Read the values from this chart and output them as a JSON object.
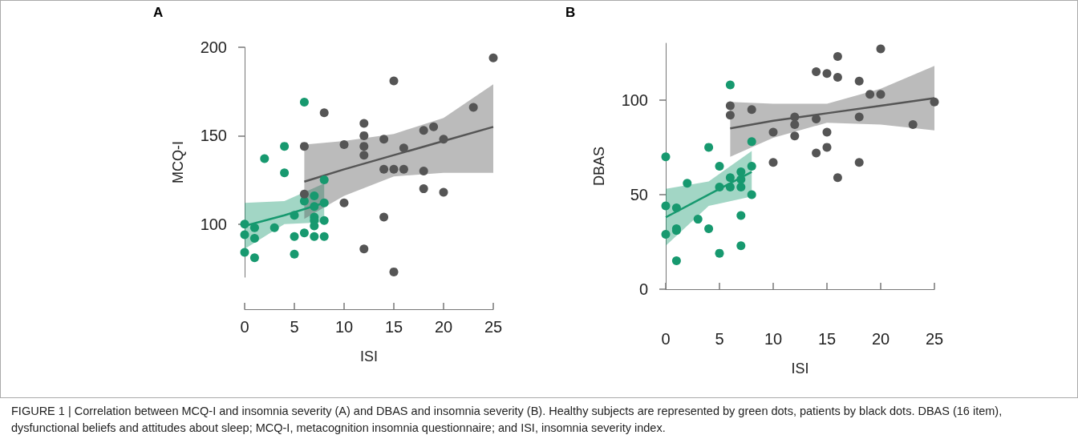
{
  "chart_data": [
    {
      "type": "scatter",
      "title": "A",
      "xlabel": "ISI",
      "ylabel": "MCQ-I",
      "xlim": [
        0,
        25
      ],
      "xticks": [
        0,
        5,
        10,
        15,
        20,
        25
      ],
      "ylim": [
        70,
        200
      ],
      "yticks": [
        100,
        150,
        200
      ],
      "grid": false,
      "annotations": [
        "FIGURE 1 | Correlation between MCQ-I and insomnia severity (A) and DBAS and insomnia severity (B). Healthy subjects are represented by green dots, patients by black dots. DBAS (16 item), dysfunctional beliefs and attitudes about sleep; MCQ-I, metacognition insomnia questionnaire; and ISI, insomnia severity index."
      ],
      "series": [
        {
          "marker": "circle",
          "color": "#17996f",
          "x": [
            0,
            0,
            0,
            1,
            1,
            1,
            2,
            3,
            4,
            4,
            5,
            5,
            5,
            6,
            6,
            6,
            7,
            7,
            7,
            7,
            7,
            7,
            8,
            8,
            8,
            8
          ],
          "values": [
            100,
            94,
            84,
            98,
            92,
            81,
            137,
            98,
            144,
            129,
            105,
            93,
            83,
            169,
            113,
            95,
            116,
            110,
            104,
            102,
            99,
            93,
            125,
            112,
            102,
            93
          ]
        },
        {
          "marker": "circle",
          "color": "#555555",
          "x": [
            6,
            6,
            8,
            10,
            10,
            12,
            12,
            12,
            12,
            12,
            14,
            14,
            14,
            15,
            15,
            15,
            16,
            16,
            18,
            18,
            18,
            19,
            20,
            20,
            23,
            25
          ],
          "values": [
            144,
            117,
            163,
            145,
            112,
            157,
            150,
            144,
            139,
            86,
            148,
            131,
            104,
            181,
            131,
            73,
            143,
            131,
            153,
            130,
            120,
            155,
            148,
            118,
            166,
            194
          ]
        },
        {
          "type": "line",
          "marker": "none",
          "color": "#17996f",
          "x": [
            0,
            4,
            8
          ],
          "values": [
            99,
            105,
            112
          ],
          "lower": [
            86,
            100,
            101
          ],
          "upper": [
            112,
            113,
            123
          ]
        },
        {
          "type": "line",
          "marker": "none",
          "color": "#555555",
          "x": [
            6,
            10,
            15,
            20,
            25
          ],
          "values": [
            124,
            131,
            139,
            147,
            155
          ],
          "lower": [
            103,
            116,
            127,
            129,
            129
          ],
          "upper": [
            145,
            147,
            151,
            160,
            179
          ]
        }
      ]
    },
    {
      "type": "scatter",
      "title": "B",
      "xlabel": "ISI",
      "ylabel": "DBAS",
      "xlim": [
        0,
        25
      ],
      "xticks": [
        0,
        5,
        10,
        15,
        20,
        25
      ],
      "ylim": [
        0,
        130
      ],
      "yticks": [
        0,
        50,
        100
      ],
      "grid": false,
      "series": [
        {
          "marker": "circle",
          "color": "#17996f",
          "x": [
            0,
            0,
            0,
            1,
            1,
            1,
            1,
            2,
            3,
            4,
            4,
            5,
            5,
            5,
            6,
            6,
            6,
            7,
            7,
            7,
            7,
            7,
            8,
            8,
            8
          ],
          "values": [
            70,
            44,
            29,
            43,
            32,
            31,
            15,
            56,
            37,
            75,
            32,
            65,
            54,
            19,
            108,
            59,
            54,
            62,
            58,
            54,
            39,
            23,
            78,
            65,
            50
          ]
        },
        {
          "marker": "circle",
          "color": "#555555",
          "x": [
            6,
            6,
            8,
            10,
            10,
            12,
            12,
            12,
            14,
            14,
            14,
            15,
            15,
            15,
            16,
            16,
            16,
            18,
            18,
            18,
            19,
            20,
            20,
            23,
            25
          ],
          "values": [
            97,
            92,
            95,
            83,
            67,
            91,
            87,
            81,
            115,
            90,
            72,
            114,
            83,
            75,
            123,
            112,
            59,
            110,
            91,
            67,
            103,
            127,
            103,
            87,
            99
          ]
        },
        {
          "type": "line",
          "marker": "none",
          "color": "#17996f",
          "x": [
            0,
            4,
            8
          ],
          "values": [
            38,
            50,
            62
          ],
          "lower": [
            23,
            44,
            49
          ],
          "upper": [
            53,
            57,
            73
          ]
        },
        {
          "type": "line",
          "marker": "none",
          "color": "#555555",
          "x": [
            6,
            10,
            15,
            20,
            25
          ],
          "values": [
            85,
            89,
            93,
            97,
            101
          ],
          "lower": [
            70,
            80,
            88,
            87,
            84
          ],
          "upper": [
            99,
            98,
            98,
            106,
            118
          ]
        }
      ]
    }
  ]
}
